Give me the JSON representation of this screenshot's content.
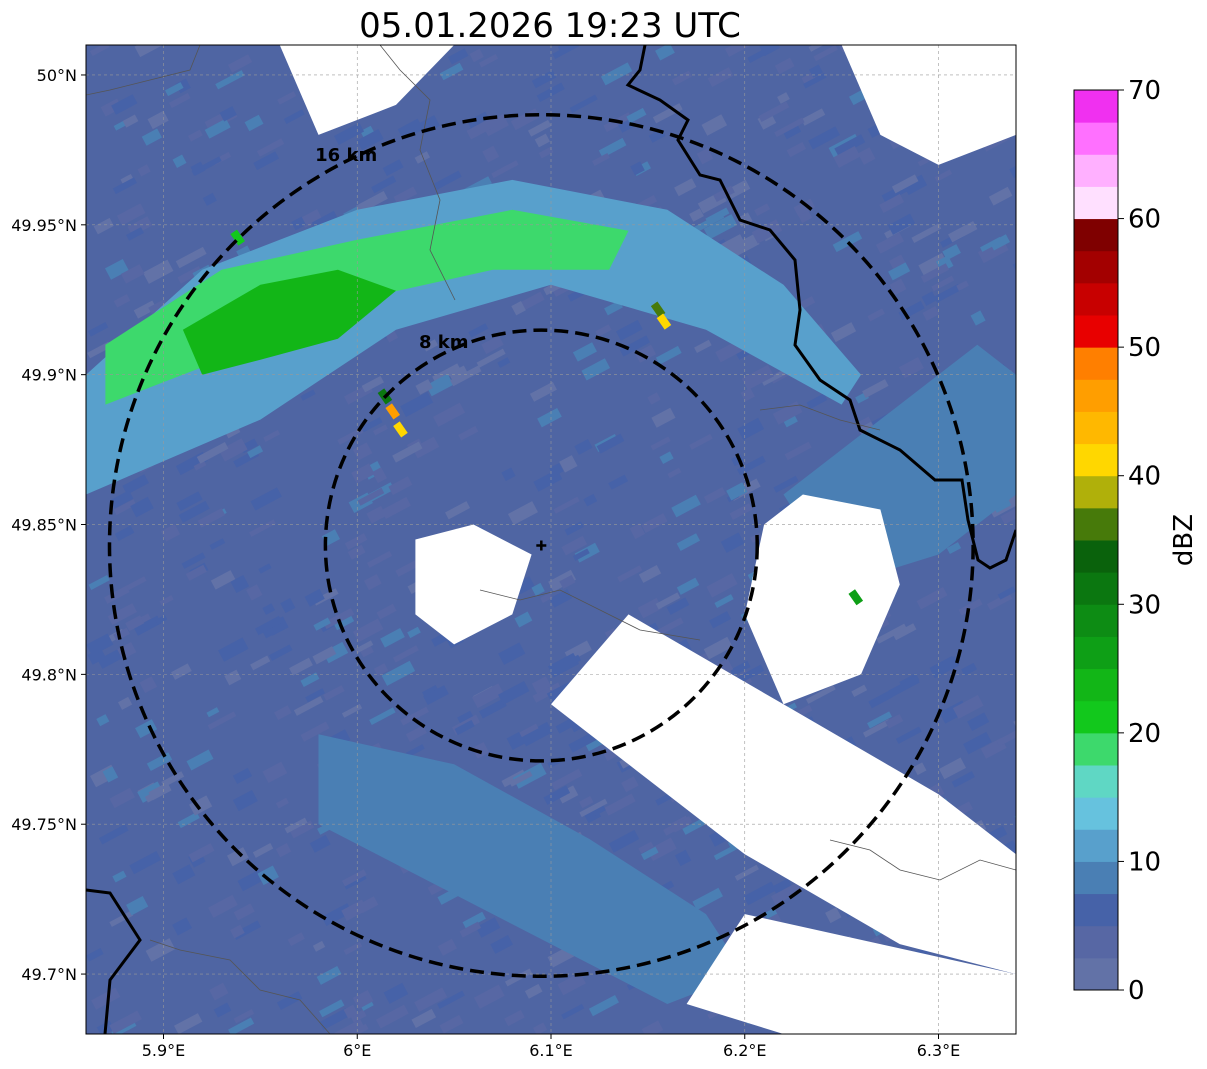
{
  "title": "05.01.2026 19:23 UTC",
  "map": {
    "lon_range": [
      5.86,
      6.34
    ],
    "lat_range": [
      49.68,
      50.01
    ],
    "x_ticks": [
      {
        "value": 5.9,
        "label": "5.9°E"
      },
      {
        "value": 6.0,
        "label": "6°E"
      },
      {
        "value": 6.1,
        "label": "6.1°E"
      },
      {
        "value": 6.2,
        "label": "6.2°E"
      },
      {
        "value": 6.3,
        "label": "6.3°E"
      }
    ],
    "y_ticks": [
      {
        "value": 50.0,
        "label": "50°N"
      },
      {
        "value": 49.95,
        "label": "49.95°N"
      },
      {
        "value": 49.9,
        "label": "49.9°N"
      },
      {
        "value": 49.85,
        "label": "49.85°N"
      },
      {
        "value": 49.8,
        "label": "49.8°N"
      },
      {
        "value": 49.75,
        "label": "49.75°N"
      },
      {
        "value": 49.7,
        "label": "49.7°N"
      }
    ],
    "radar_site": {
      "lon": 6.095,
      "lat": 49.843
    },
    "range_rings": [
      {
        "radius_km": 8,
        "label": "8 km"
      },
      {
        "radius_km": 16,
        "label": "16 km"
      }
    ],
    "grid": true
  },
  "chart_data": {
    "type": "heatmap",
    "quantity": "reflectivity",
    "colorbar": {
      "label": "dBZ",
      "range": [
        0,
        70
      ],
      "ticks": [
        0,
        10,
        20,
        30,
        40,
        50,
        60,
        70
      ],
      "colors": [
        "#6272a7",
        "#5767a4",
        "#4662a8",
        "#4a7fb4",
        "#58a0cc",
        "#66c2de",
        "#5fd7c4",
        "#3dd96c",
        "#12c81c",
        "#12b617",
        "#0e9f16",
        "#0d8c14",
        "#0b7710",
        "#0a620c",
        "#477a0a",
        "#b0b00a",
        "#ffd700",
        "#ffb800",
        "#ff9e00",
        "#ff7f00",
        "#e80000",
        "#c80000",
        "#a30000",
        "#7f0000",
        "#ffe0ff",
        "#ffb0ff",
        "#ff70ff",
        "#f030f0"
      ]
    },
    "echo_regions": [
      {
        "name": "main-band",
        "dbz": 12,
        "points": [
          [
            5.86,
            49.9
          ],
          [
            5.92,
            49.935
          ],
          [
            6.0,
            49.955
          ],
          [
            6.08,
            49.965
          ],
          [
            6.16,
            49.955
          ],
          [
            6.22,
            49.93
          ],
          [
            6.26,
            49.9
          ],
          [
            6.25,
            49.89
          ],
          [
            6.18,
            49.915
          ],
          [
            6.1,
            49.93
          ],
          [
            6.02,
            49.915
          ],
          [
            5.95,
            49.885
          ],
          [
            5.86,
            49.86
          ]
        ]
      },
      {
        "name": "core-band",
        "dbz": 18,
        "points": [
          [
            5.87,
            49.91
          ],
          [
            5.93,
            49.935
          ],
          [
            6.0,
            49.945
          ],
          [
            6.08,
            49.955
          ],
          [
            6.14,
            49.948
          ],
          [
            6.13,
            49.935
          ],
          [
            6.07,
            49.935
          ],
          [
            6.0,
            49.925
          ],
          [
            5.93,
            49.905
          ],
          [
            5.87,
            49.89
          ]
        ]
      },
      {
        "name": "cell-west",
        "dbz": 24,
        "points": [
          [
            5.91,
            49.915
          ],
          [
            5.95,
            49.93
          ],
          [
            5.99,
            49.935
          ],
          [
            6.02,
            49.928
          ],
          [
            5.99,
            49.912
          ],
          [
            5.95,
            49.905
          ],
          [
            5.92,
            49.9
          ]
        ]
      },
      {
        "name": "streak-south",
        "dbz": 8,
        "points": [
          [
            5.98,
            49.78
          ],
          [
            6.05,
            49.77
          ],
          [
            6.12,
            49.745
          ],
          [
            6.18,
            49.72
          ],
          [
            6.2,
            49.7
          ],
          [
            6.16,
            49.69
          ],
          [
            6.1,
            49.71
          ],
          [
            6.04,
            49.73
          ],
          [
            5.98,
            49.75
          ]
        ]
      },
      {
        "name": "streak-east",
        "dbz": 9,
        "points": [
          [
            6.22,
            49.86
          ],
          [
            6.28,
            49.89
          ],
          [
            6.32,
            49.91
          ],
          [
            6.34,
            49.9
          ],
          [
            6.34,
            49.86
          ],
          [
            6.3,
            49.84
          ],
          [
            6.25,
            49.83
          ]
        ]
      }
    ],
    "clear_regions": [
      {
        "name": "clear-center",
        "points": [
          [
            6.03,
            49.845
          ],
          [
            6.06,
            49.85
          ],
          [
            6.09,
            49.84
          ],
          [
            6.08,
            49.82
          ],
          [
            6.05,
            49.81
          ],
          [
            6.03,
            49.82
          ]
        ]
      },
      {
        "name": "clear-east",
        "points": [
          [
            6.23,
            49.86
          ],
          [
            6.27,
            49.855
          ],
          [
            6.28,
            49.83
          ],
          [
            6.26,
            49.8
          ],
          [
            6.22,
            49.79
          ],
          [
            6.2,
            49.82
          ],
          [
            6.21,
            49.85
          ]
        ]
      },
      {
        "name": "clear-northeast",
        "points": [
          [
            6.25,
            50.01
          ],
          [
            6.34,
            50.01
          ],
          [
            6.34,
            49.98
          ],
          [
            6.3,
            49.97
          ],
          [
            6.27,
            49.98
          ]
        ]
      },
      {
        "name": "clear-south",
        "points": [
          [
            6.14,
            49.82
          ],
          [
            6.22,
            49.79
          ],
          [
            6.3,
            49.76
          ],
          [
            6.34,
            49.74
          ],
          [
            6.34,
            49.7
          ],
          [
            6.28,
            49.71
          ],
          [
            6.2,
            49.74
          ],
          [
            6.14,
            49.77
          ],
          [
            6.1,
            49.79
          ]
        ]
      },
      {
        "name": "clear-southeast-edge",
        "points": [
          [
            6.2,
            49.72
          ],
          [
            6.34,
            49.7
          ],
          [
            6.34,
            49.68
          ],
          [
            6.22,
            49.68
          ],
          [
            6.17,
            49.69
          ]
        ]
      },
      {
        "name": "clear-north",
        "points": [
          [
            5.96,
            50.01
          ],
          [
            6.05,
            50.01
          ],
          [
            6.02,
            49.99
          ],
          [
            5.98,
            49.98
          ]
        ]
      }
    ],
    "isolated_cells": [
      {
        "lon": 6.155,
        "lat": 49.922,
        "dbz": 35
      },
      {
        "lon": 6.158,
        "lat": 49.918,
        "dbz": 42
      },
      {
        "lon": 6.018,
        "lat": 49.888,
        "dbz": 46
      },
      {
        "lon": 6.022,
        "lat": 49.882,
        "dbz": 41
      },
      {
        "lon": 6.014,
        "lat": 49.893,
        "dbz": 30
      },
      {
        "lon": 6.257,
        "lat": 49.826,
        "dbz": 25
      },
      {
        "lon": 5.938,
        "lat": 49.946,
        "dbz": 22
      }
    ]
  }
}
